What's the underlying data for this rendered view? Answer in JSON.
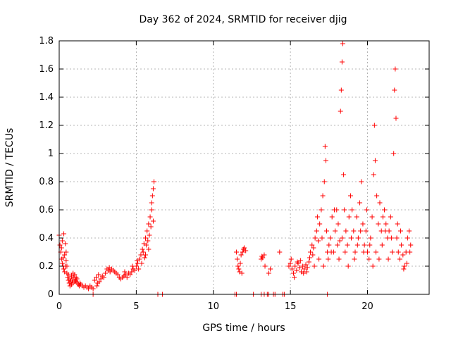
{
  "chart_data": {
    "type": "scatter",
    "title": "Day 362 of 2024, SRMTID for receiver djig",
    "xlabel": "GPS time / hours",
    "ylabel": "SRMTID / TECUs",
    "xlim": [
      0,
      24
    ],
    "ylim": [
      0,
      1.8
    ],
    "xticks": [
      0,
      5,
      10,
      15,
      20
    ],
    "yticks": [
      0,
      0.2,
      0.4,
      0.6,
      0.8,
      1,
      1.2,
      1.4,
      1.6,
      1.8
    ],
    "xtick_labels": [
      "0",
      "5",
      "10",
      "15",
      "20"
    ],
    "ytick_labels": [
      "0",
      "0.2",
      "0.4",
      "0.6",
      "0.8",
      "1",
      "1.2",
      "1.4",
      "1.6",
      "1.8"
    ],
    "grid": true,
    "marker": "+",
    "color": "#ff0000",
    "series": [
      {
        "name": "SRMTID",
        "points": [
          [
            0.0,
            0.42
          ],
          [
            0.05,
            0.35
          ],
          [
            0.1,
            0.3
          ],
          [
            0.15,
            0.25
          ],
          [
            0.2,
            0.22
          ],
          [
            0.25,
            0.2
          ],
          [
            0.3,
            0.18
          ],
          [
            0.35,
            0.16
          ],
          [
            0.4,
            0.2
          ],
          [
            0.45,
            0.24
          ],
          [
            0.5,
            0.15
          ],
          [
            0.55,
            0.12
          ],
          [
            0.6,
            0.1
          ],
          [
            0.65,
            0.08
          ],
          [
            0.7,
            0.11
          ],
          [
            0.75,
            0.09
          ],
          [
            0.8,
            0.07
          ],
          [
            0.85,
            0.1
          ],
          [
            0.9,
            0.08
          ],
          [
            0.95,
            0.12
          ],
          [
            1.0,
            0.14
          ],
          [
            1.05,
            0.1
          ],
          [
            1.1,
            0.09
          ],
          [
            1.15,
            0.11
          ],
          [
            1.2,
            0.08
          ],
          [
            1.25,
            0.07
          ],
          [
            1.3,
            0.06
          ],
          [
            1.35,
            0.08
          ],
          [
            1.4,
            0.07
          ],
          [
            1.5,
            0.06
          ],
          [
            1.6,
            0.05
          ],
          [
            1.7,
            0.06
          ],
          [
            1.8,
            0.05
          ],
          [
            1.9,
            0.04
          ],
          [
            2.0,
            0.06
          ],
          [
            2.1,
            0.05
          ],
          [
            2.2,
            0.04
          ],
          [
            0.2,
            0.38
          ],
          [
            0.3,
            0.43
          ],
          [
            0.4,
            0.36
          ],
          [
            0.35,
            0.28
          ],
          [
            0.15,
            0.33
          ],
          [
            0.45,
            0.3
          ],
          [
            0.25,
            0.26
          ],
          [
            0.5,
            0.2
          ],
          [
            0.6,
            0.14
          ],
          [
            0.7,
            0.06
          ],
          [
            0.8,
            0.13
          ],
          [
            0.9,
            0.15
          ],
          [
            1.0,
            0.09
          ],
          [
            1.1,
            0.12
          ],
          [
            2.3,
            0.1
          ],
          [
            2.4,
            0.12
          ],
          [
            2.5,
            0.08
          ],
          [
            2.6,
            0.09
          ],
          [
            2.7,
            0.11
          ],
          [
            2.8,
            0.13
          ],
          [
            2.9,
            0.12
          ],
          [
            3.0,
            0.15
          ],
          [
            3.1,
            0.18
          ],
          [
            3.2,
            0.17
          ],
          [
            3.3,
            0.16
          ],
          [
            3.4,
            0.18
          ],
          [
            3.5,
            0.17
          ],
          [
            3.6,
            0.16
          ],
          [
            3.7,
            0.15
          ],
          [
            3.8,
            0.14
          ],
          [
            3.9,
            0.12
          ],
          [
            4.0,
            0.11
          ],
          [
            4.1,
            0.12
          ],
          [
            4.2,
            0.13
          ],
          [
            4.3,
            0.14
          ],
          [
            4.4,
            0.12
          ],
          [
            4.5,
            0.15
          ],
          [
            4.6,
            0.14
          ],
          [
            4.7,
            0.16
          ],
          [
            4.8,
            0.18
          ],
          [
            4.9,
            0.17
          ],
          [
            5.0,
            0.2
          ],
          [
            5.1,
            0.22
          ],
          [
            5.2,
            0.25
          ],
          [
            5.3,
            0.28
          ],
          [
            5.4,
            0.32
          ],
          [
            5.5,
            0.36
          ],
          [
            5.6,
            0.4
          ],
          [
            5.7,
            0.45
          ],
          [
            5.8,
            0.5
          ],
          [
            5.9,
            0.55
          ],
          [
            6.0,
            0.6
          ],
          [
            6.05,
            0.7
          ],
          [
            6.1,
            0.75
          ],
          [
            6.15,
            0.8
          ],
          [
            2.45,
            0.06
          ],
          [
            2.55,
            0.14
          ],
          [
            3.25,
            0.19
          ],
          [
            4.25,
            0.16
          ],
          [
            4.75,
            0.2
          ],
          [
            5.05,
            0.24
          ],
          [
            5.15,
            0.18
          ],
          [
            5.35,
            0.22
          ],
          [
            5.45,
            0.3
          ],
          [
            5.55,
            0.26
          ],
          [
            5.65,
            0.35
          ],
          [
            5.75,
            0.38
          ],
          [
            5.85,
            0.42
          ],
          [
            5.95,
            0.48
          ],
          [
            6.1,
            0.52
          ],
          [
            6.0,
            0.65
          ],
          [
            5.8,
            0.32
          ],
          [
            5.6,
            0.28
          ],
          [
            11.5,
            0.3
          ],
          [
            11.55,
            0.25
          ],
          [
            11.6,
            0.2
          ],
          [
            11.65,
            0.18
          ],
          [
            11.7,
            0.16
          ],
          [
            11.75,
            0.22
          ],
          [
            11.8,
            0.28
          ],
          [
            11.85,
            0.15
          ],
          [
            11.9,
            0.3
          ],
          [
            11.95,
            0.32
          ],
          [
            12.0,
            0.33
          ],
          [
            12.1,
            0.31
          ],
          [
            13.1,
            0.25
          ],
          [
            13.15,
            0.27
          ],
          [
            13.2,
            0.26
          ],
          [
            13.3,
            0.28
          ],
          [
            13.35,
            0.2
          ],
          [
            13.6,
            0.15
          ],
          [
            13.7,
            0.18
          ],
          [
            14.3,
            0.3
          ],
          [
            14.9,
            0.2
          ],
          [
            15.0,
            0.22
          ],
          [
            15.1,
            0.18
          ],
          [
            15.2,
            0.15
          ],
          [
            15.3,
            0.2
          ],
          [
            15.4,
            0.17
          ],
          [
            15.5,
            0.22
          ],
          [
            15.6,
            0.19
          ],
          [
            15.7,
            0.16
          ],
          [
            15.8,
            0.2
          ],
          [
            15.9,
            0.18
          ],
          [
            16.0,
            0.21
          ],
          [
            16.1,
            0.19
          ],
          [
            16.2,
            0.23
          ],
          [
            16.3,
            0.3
          ],
          [
            16.4,
            0.35
          ],
          [
            16.5,
            0.33
          ],
          [
            16.6,
            0.4
          ],
          [
            16.7,
            0.45
          ],
          [
            16.8,
            0.38
          ],
          [
            16.9,
            0.5
          ],
          [
            17.0,
            0.6
          ],
          [
            17.1,
            0.7
          ],
          [
            17.2,
            0.8
          ],
          [
            17.25,
            1.05
          ],
          [
            17.3,
            0.95
          ],
          [
            17.35,
            0.45
          ],
          [
            17.4,
            0.3
          ],
          [
            17.5,
            0.35
          ],
          [
            17.6,
            0.4
          ],
          [
            17.7,
            0.55
          ],
          [
            17.8,
            0.3
          ],
          [
            17.9,
            0.45
          ],
          [
            18.0,
            0.6
          ],
          [
            18.1,
            0.5
          ],
          [
            18.2,
            0.38
          ],
          [
            18.25,
            1.3
          ],
          [
            18.3,
            1.45
          ],
          [
            18.35,
            1.65
          ],
          [
            18.4,
            1.78
          ],
          [
            18.45,
            0.85
          ],
          [
            18.5,
            0.6
          ],
          [
            18.6,
            0.45
          ],
          [
            18.7,
            0.35
          ],
          [
            18.8,
            0.55
          ],
          [
            18.9,
            0.7
          ],
          [
            19.0,
            0.6
          ],
          [
            19.1,
            0.45
          ],
          [
            19.2,
            0.3
          ],
          [
            19.3,
            0.55
          ],
          [
            19.4,
            0.4
          ],
          [
            19.5,
            0.65
          ],
          [
            19.6,
            0.8
          ],
          [
            19.7,
            0.5
          ],
          [
            19.8,
            0.35
          ],
          [
            19.9,
            0.45
          ],
          [
            20.0,
            0.3
          ],
          [
            20.1,
            0.25
          ],
          [
            20.2,
            0.4
          ],
          [
            20.3,
            0.55
          ],
          [
            20.4,
            0.85
          ],
          [
            20.45,
            1.2
          ],
          [
            20.5,
            0.95
          ],
          [
            20.6,
            0.7
          ],
          [
            20.7,
            0.5
          ],
          [
            20.8,
            0.65
          ],
          [
            20.9,
            0.45
          ],
          [
            21.0,
            0.55
          ],
          [
            21.1,
            0.6
          ],
          [
            21.2,
            0.5
          ],
          [
            21.3,
            0.4
          ],
          [
            21.4,
            0.45
          ],
          [
            21.5,
            0.55
          ],
          [
            21.6,
            0.3
          ],
          [
            21.7,
            1.0
          ],
          [
            21.75,
            1.45
          ],
          [
            21.8,
            1.6
          ],
          [
            21.85,
            1.25
          ],
          [
            21.9,
            0.4
          ],
          [
            22.0,
            0.3
          ],
          [
            22.1,
            0.25
          ],
          [
            22.2,
            0.35
          ],
          [
            22.3,
            0.28
          ],
          [
            22.4,
            0.2
          ],
          [
            22.5,
            0.3
          ],
          [
            22.6,
            0.4
          ],
          [
            22.7,
            0.45
          ],
          [
            22.8,
            0.35
          ],
          [
            16.45,
            0.28
          ],
          [
            16.75,
            0.55
          ],
          [
            17.05,
            0.4
          ],
          [
            17.45,
            0.25
          ],
          [
            17.65,
            0.3
          ],
          [
            17.85,
            0.6
          ],
          [
            18.05,
            0.35
          ],
          [
            18.15,
            0.25
          ],
          [
            18.35,
            0.4
          ],
          [
            18.55,
            0.3
          ],
          [
            18.75,
            0.2
          ],
          [
            18.95,
            0.4
          ],
          [
            19.15,
            0.25
          ],
          [
            19.35,
            0.35
          ],
          [
            19.55,
            0.45
          ],
          [
            19.75,
            0.3
          ],
          [
            19.95,
            0.6
          ],
          [
            20.15,
            0.35
          ],
          [
            20.35,
            0.2
          ],
          [
            20.55,
            0.3
          ],
          [
            20.75,
            0.25
          ],
          [
            20.95,
            0.35
          ],
          [
            21.15,
            0.45
          ],
          [
            21.35,
            0.25
          ],
          [
            21.55,
            0.4
          ],
          [
            21.95,
            0.5
          ],
          [
            22.15,
            0.45
          ],
          [
            22.35,
            0.18
          ],
          [
            22.55,
            0.22
          ],
          [
            22.75,
            0.3
          ],
          [
            15.05,
            0.25
          ],
          [
            15.25,
            0.12
          ],
          [
            15.45,
            0.23
          ],
          [
            15.65,
            0.24
          ],
          [
            15.85,
            0.15
          ],
          [
            16.05,
            0.16
          ],
          [
            16.25,
            0.26
          ],
          [
            16.55,
            0.2
          ],
          [
            16.85,
            0.25
          ],
          [
            17.15,
            0.2
          ],
          [
            2.2,
            0.0
          ],
          [
            6.4,
            0.0
          ],
          [
            6.7,
            0.0
          ],
          [
            11.4,
            0.0
          ],
          [
            11.5,
            0.0
          ],
          [
            12.6,
            0.0
          ],
          [
            13.1,
            0.0
          ],
          [
            13.3,
            0.0
          ],
          [
            13.5,
            0.0
          ],
          [
            13.6,
            0.0
          ],
          [
            13.9,
            0.0
          ],
          [
            14.0,
            0.0
          ],
          [
            14.5,
            0.0
          ],
          [
            14.6,
            0.0
          ],
          [
            17.4,
            0.0
          ]
        ]
      }
    ]
  }
}
